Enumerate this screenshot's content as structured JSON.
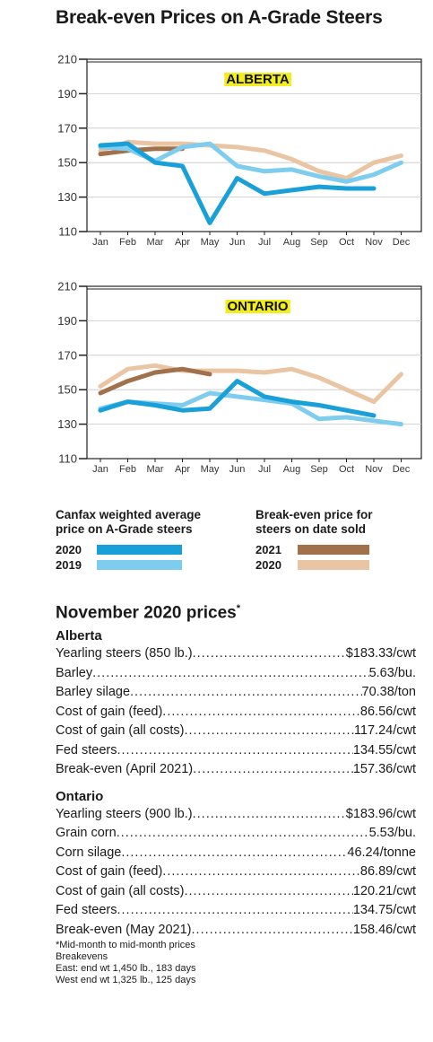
{
  "title": "Break-even Prices on A-Grade Steers",
  "chart_data": [
    {
      "type": "line",
      "title": "ALBERTA",
      "categories": [
        "Jan",
        "Feb",
        "Mar",
        "Apr",
        "May",
        "Jun",
        "Jul",
        "Aug",
        "Sep",
        "Oct",
        "Nov",
        "Dec"
      ],
      "ylim": [
        110,
        210
      ],
      "yticks": [
        110,
        130,
        150,
        170,
        190,
        210
      ],
      "series": [
        {
          "name": "2020",
          "group": "Canfax weighted average price on A-Grade steers",
          "color": "#1aa0d8",
          "values": [
            160,
            161,
            150,
            148,
            115,
            141,
            132,
            134,
            136,
            135,
            135,
            null
          ]
        },
        {
          "name": "2019",
          "group": "Canfax weighted average price on A-Grade steers",
          "color": "#7fcdee",
          "values": [
            159,
            158,
            151,
            159,
            161,
            148,
            145,
            146,
            142,
            139,
            143,
            150
          ]
        },
        {
          "name": "2021",
          "group": "Break-even price for steers on date sold",
          "color": "#a0714a",
          "values": [
            155,
            157,
            158,
            158,
            null,
            null,
            null,
            null,
            null,
            null,
            null,
            null
          ]
        },
        {
          "name": "2020",
          "group": "Break-even price for steers on date sold",
          "color": "#e9c5a4",
          "values": [
            157,
            162,
            161,
            161,
            160,
            159,
            157,
            152,
            145,
            141,
            150,
            154
          ]
        }
      ]
    },
    {
      "type": "line",
      "title": "ONTARIO",
      "categories": [
        "Jan",
        "Feb",
        "Mar",
        "Apr",
        "May",
        "Jun",
        "Jul",
        "Aug",
        "Sep",
        "Oct",
        "Nov",
        "Dec"
      ],
      "ylim": [
        110,
        210
      ],
      "yticks": [
        110,
        130,
        150,
        170,
        190,
        210
      ],
      "series": [
        {
          "name": "2020",
          "group": "Canfax weighted average price on A-Grade steers",
          "color": "#1aa0d8",
          "values": [
            138,
            143,
            141,
            138,
            139,
            155,
            146,
            143,
            141,
            138,
            135,
            null
          ]
        },
        {
          "name": "2019",
          "group": "Canfax weighted average price on A-Grade steers",
          "color": "#7fcdee",
          "values": [
            139,
            143,
            142,
            141,
            148,
            146,
            144,
            142,
            133,
            134,
            132,
            130
          ]
        },
        {
          "name": "2021",
          "group": "Break-even price for steers on date sold",
          "color": "#a0714a",
          "values": [
            148,
            155,
            160,
            162,
            159,
            null,
            null,
            null,
            null,
            null,
            null,
            null
          ]
        },
        {
          "name": "2020",
          "group": "Break-even price for steers on date sold",
          "color": "#e9c5a4",
          "values": [
            152,
            162,
            164,
            161,
            161,
            161,
            160,
            162,
            157,
            150,
            143,
            159
          ]
        }
      ]
    }
  ],
  "legend": {
    "left_heading": "Canfax weighted average price on A-Grade steers",
    "right_heading": "Break-even price for steers on date sold",
    "left_rows": [
      {
        "label": "2020",
        "color": "#1aa0d8"
      },
      {
        "label": "2019",
        "color": "#7fcdee"
      }
    ],
    "right_rows": [
      {
        "label": "2021",
        "color": "#a0714a"
      },
      {
        "label": "2020",
        "color": "#e9c5a4"
      }
    ]
  },
  "prices": {
    "title": "November 2020 prices",
    "title_mark": "*",
    "sections": [
      {
        "heading": "Alberta",
        "rows": [
          {
            "label": "Yearling steers (850 lb.)",
            "value": "$183.33/cwt"
          },
          {
            "label": "Barley",
            "value": "5.63/bu."
          },
          {
            "label": "Barley silage",
            "value": "70.38/ton"
          },
          {
            "label": "Cost of gain (feed)",
            "value": "86.56/cwt"
          },
          {
            "label": "Cost of gain (all costs)",
            "value": "117.24/cwt"
          },
          {
            "label": "Fed steers",
            "value": "134.55/cwt"
          },
          {
            "label": "Break-even (April 2021)",
            "value": "157.36/cwt"
          }
        ]
      },
      {
        "heading": "Ontario",
        "rows": [
          {
            "label": "Yearling steers (900 lb.)",
            "value": "$183.96/cwt"
          },
          {
            "label": "Grain corn",
            "value": "5.53/bu."
          },
          {
            "label": "Corn silage",
            "value": "46.24/tonne"
          },
          {
            "label": "Cost of gain (feed)",
            "value": "86.89/cwt"
          },
          {
            "label": "Cost of gain (all costs)",
            "value": "120.21/cwt"
          },
          {
            "label": "Fed steers",
            "value": "134.75/cwt"
          },
          {
            "label": "Break-even (May 2021)",
            "value": "158.46/cwt"
          }
        ]
      }
    ],
    "notes": [
      "*Mid-month to mid-month prices",
      "Breakevens",
      "East: end wt 1,450 lb., 183 days",
      "West end wt 1,325 lb., 125 days"
    ]
  }
}
